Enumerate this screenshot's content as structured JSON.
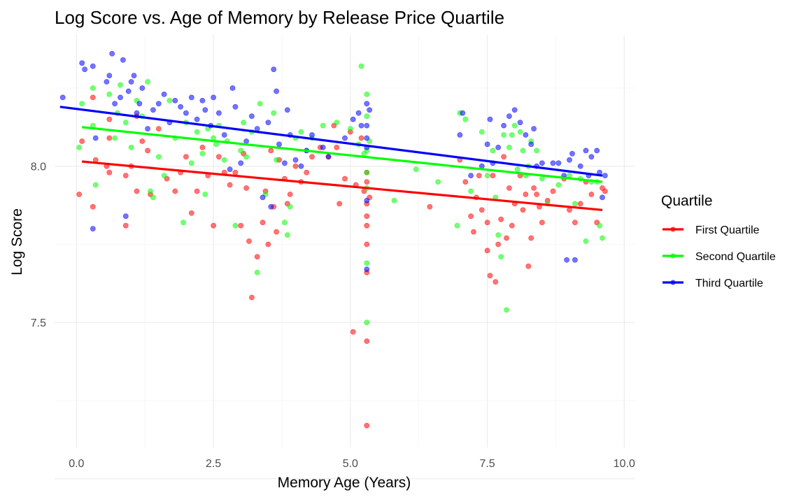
{
  "chart_data": {
    "type": "scatter",
    "title": "Log Score vs. Age of Memory by Release Price Quartile",
    "xlabel": "Memory Age (Years)",
    "ylabel": "Log Score",
    "xlim": [
      -0.4,
      10.2
    ],
    "ylim": [
      7.1,
      8.42
    ],
    "x_ticks": [
      0,
      2.5,
      5,
      7.5,
      10
    ],
    "x_tick_labels": [
      "0.0",
      "2.5",
      "5.0",
      "7.5",
      "10.0"
    ],
    "y_ticks": [
      7.5,
      8.0
    ],
    "y_tick_labels": [
      "7.5",
      "8.0"
    ],
    "grid": true,
    "legend_title": "Quartile",
    "legend_position": "right",
    "series": [
      {
        "name": "First Quartile",
        "color": "#ff0000",
        "trend": [
          [
            0.1,
            8.015
          ],
          [
            9.6,
            7.86
          ]
        ],
        "points": [
          [
            0.05,
            7.91
          ],
          [
            0.1,
            8.08
          ],
          [
            0.3,
            7.87
          ],
          [
            0.3,
            8.22
          ],
          [
            0.35,
            8.02
          ],
          [
            0.55,
            8.0
          ],
          [
            0.6,
            7.98
          ],
          [
            0.6,
            8.09
          ],
          [
            0.6,
            8.15
          ],
          [
            0.9,
            7.81
          ],
          [
            0.9,
            7.97
          ],
          [
            1.0,
            8.0
          ],
          [
            1.1,
            7.92
          ],
          [
            1.1,
            8.16
          ],
          [
            1.2,
            8.08
          ],
          [
            1.3,
            8.05
          ],
          [
            1.35,
            7.91
          ],
          [
            1.5,
            8.12
          ],
          [
            1.65,
            7.96
          ],
          [
            1.8,
            7.92
          ],
          [
            1.9,
            7.98
          ],
          [
            2.0,
            8.03
          ],
          [
            2.1,
            7.85
          ],
          [
            2.2,
            7.92
          ],
          [
            2.3,
            8.06
          ],
          [
            2.4,
            7.97
          ],
          [
            2.5,
            7.81
          ],
          [
            2.6,
            8.03
          ],
          [
            2.7,
            7.98
          ],
          [
            2.8,
            7.94
          ],
          [
            2.9,
            7.98
          ],
          [
            3.0,
            7.81
          ],
          [
            3.05,
            8.04
          ],
          [
            3.1,
            7.93
          ],
          [
            3.15,
            7.76
          ],
          [
            3.2,
            7.58
          ],
          [
            3.3,
            7.71
          ],
          [
            3.4,
            7.82
          ],
          [
            3.45,
            7.92
          ],
          [
            3.5,
            7.75
          ],
          [
            3.55,
            8.05
          ],
          [
            3.6,
            7.87
          ],
          [
            3.65,
            7.79
          ],
          [
            3.7,
            8.02
          ],
          [
            3.8,
            7.96
          ],
          [
            3.85,
            7.88
          ],
          [
            3.9,
            7.91
          ],
          [
            4.0,
            8.0
          ],
          [
            4.1,
            7.95
          ],
          [
            4.2,
            7.98
          ],
          [
            4.3,
            8.03
          ],
          [
            4.45,
            8.06
          ],
          [
            4.6,
            8.03
          ],
          [
            4.7,
            8.13
          ],
          [
            4.75,
            8.06
          ],
          [
            4.8,
            7.88
          ],
          [
            4.9,
            7.96
          ],
          [
            5.0,
            8.11
          ],
          [
            5.05,
            7.47
          ],
          [
            5.1,
            7.94
          ],
          [
            5.2,
            8.09
          ],
          [
            5.25,
            7.92
          ],
          [
            5.3,
            7.98
          ],
          [
            5.3,
            7.88
          ],
          [
            5.3,
            7.81
          ],
          [
            5.3,
            7.75
          ],
          [
            5.3,
            7.66
          ],
          [
            5.3,
            7.44
          ],
          [
            5.3,
            7.17
          ],
          [
            5.3,
            7.95
          ],
          [
            5.3,
            7.84
          ],
          [
            5.35,
            7.9
          ],
          [
            6.45,
            7.87
          ],
          [
            7.0,
            8.02
          ],
          [
            7.1,
            7.95
          ],
          [
            7.2,
            7.84
          ],
          [
            7.25,
            7.79
          ],
          [
            7.3,
            7.9
          ],
          [
            7.35,
            7.97
          ],
          [
            7.4,
            7.86
          ],
          [
            7.5,
            7.82
          ],
          [
            7.5,
            7.73
          ],
          [
            7.55,
            7.65
          ],
          [
            7.6,
            7.97
          ],
          [
            7.65,
            7.63
          ],
          [
            7.7,
            7.75
          ],
          [
            7.75,
            7.83
          ],
          [
            7.8,
            8.03
          ],
          [
            7.85,
            7.77
          ],
          [
            7.9,
            7.93
          ],
          [
            7.95,
            7.81
          ],
          [
            8.0,
            7.88
          ],
          [
            8.1,
            7.97
          ],
          [
            8.15,
            7.86
          ],
          [
            8.2,
            7.91
          ],
          [
            8.25,
            7.68
          ],
          [
            8.3,
            7.77
          ],
          [
            8.35,
            7.93
          ],
          [
            8.4,
            7.91
          ],
          [
            8.45,
            7.87
          ],
          [
            8.5,
            7.82
          ],
          [
            8.6,
            7.89
          ],
          [
            8.7,
            7.92
          ],
          [
            8.9,
            7.96
          ],
          [
            9.0,
            7.86
          ],
          [
            9.1,
            7.82
          ],
          [
            9.2,
            7.88
          ],
          [
            9.3,
            7.95
          ],
          [
            9.4,
            7.91
          ],
          [
            9.5,
            7.82
          ],
          [
            9.6,
            7.93
          ],
          [
            9.65,
            7.92
          ]
        ]
      },
      {
        "name": "Second Quartile",
        "color": "#00ff00",
        "trend": [
          [
            0.1,
            8.125
          ],
          [
            9.6,
            7.95
          ]
        ],
        "points": [
          [
            0.05,
            8.06
          ],
          [
            0.1,
            8.2
          ],
          [
            0.3,
            8.13
          ],
          [
            0.3,
            8.25
          ],
          [
            0.35,
            7.94
          ],
          [
            0.6,
            8.23
          ],
          [
            0.7,
            8.09
          ],
          [
            0.75,
            8.17
          ],
          [
            0.8,
            8.26
          ],
          [
            0.9,
            8.14
          ],
          [
            1.0,
            8.06
          ],
          [
            1.1,
            8.21
          ],
          [
            1.2,
            8.16
          ],
          [
            1.3,
            8.27
          ],
          [
            1.35,
            7.92
          ],
          [
            1.4,
            7.9
          ],
          [
            1.5,
            8.03
          ],
          [
            1.6,
            7.97
          ],
          [
            1.7,
            8.21
          ],
          [
            1.8,
            8.09
          ],
          [
            1.95,
            7.82
          ],
          [
            2.0,
            8.14
          ],
          [
            2.1,
            8.01
          ],
          [
            2.2,
            8.11
          ],
          [
            2.3,
            8.04
          ],
          [
            2.35,
            7.91
          ],
          [
            2.4,
            8.12
          ],
          [
            2.5,
            8.09
          ],
          [
            2.55,
            8.07
          ],
          [
            2.6,
            8.13
          ],
          [
            2.7,
            8.02
          ],
          [
            2.75,
            8.08
          ],
          [
            2.9,
            7.81
          ],
          [
            3.0,
            8.05
          ],
          [
            3.05,
            8.14
          ],
          [
            3.1,
            8.03
          ],
          [
            3.2,
            8.11
          ],
          [
            3.3,
            7.66
          ],
          [
            3.35,
            8.2
          ],
          [
            3.45,
            7.91
          ],
          [
            3.6,
            8.17
          ],
          [
            3.65,
            8.02
          ],
          [
            3.8,
            7.82
          ],
          [
            3.85,
            7.78
          ],
          [
            3.9,
            7.87
          ],
          [
            4.0,
            8.09
          ],
          [
            4.1,
            8.11
          ],
          [
            4.2,
            8.05
          ],
          [
            4.3,
            8.09
          ],
          [
            4.5,
            8.13
          ],
          [
            4.75,
            8.14
          ],
          [
            5.0,
            8.12
          ],
          [
            5.15,
            8.07
          ],
          [
            5.2,
            8.32
          ],
          [
            5.25,
            8.04
          ],
          [
            5.3,
            8.05
          ],
          [
            5.3,
            7.93
          ],
          [
            5.3,
            7.69
          ],
          [
            5.3,
            7.5
          ],
          [
            5.3,
            8.23
          ],
          [
            5.3,
            8.16
          ],
          [
            5.3,
            7.98
          ],
          [
            5.35,
            8.08
          ],
          [
            5.8,
            7.89
          ],
          [
            6.2,
            7.99
          ],
          [
            6.6,
            7.95
          ],
          [
            6.95,
            7.81
          ],
          [
            7.0,
            8.17
          ],
          [
            7.1,
            8.15
          ],
          [
            7.2,
            7.92
          ],
          [
            7.4,
            8.11
          ],
          [
            7.5,
            7.97
          ],
          [
            7.6,
            8.05
          ],
          [
            7.65,
            7.9
          ],
          [
            7.7,
            7.78
          ],
          [
            7.75,
            7.71
          ],
          [
            7.8,
            8.1
          ],
          [
            7.85,
            7.54
          ],
          [
            7.9,
            8.06
          ],
          [
            7.95,
            8.1
          ],
          [
            8.0,
            8.13
          ],
          [
            8.05,
            7.99
          ],
          [
            8.1,
            8.11
          ],
          [
            8.15,
            8.05
          ],
          [
            8.2,
            7.97
          ],
          [
            8.25,
            8.0
          ],
          [
            8.3,
            8.08
          ],
          [
            8.4,
            8.05
          ],
          [
            8.5,
            7.96
          ],
          [
            8.6,
            7.88
          ],
          [
            8.8,
            7.94
          ],
          [
            9.0,
            7.97
          ],
          [
            9.1,
            7.88
          ],
          [
            9.2,
            7.96
          ],
          [
            9.3,
            7.76
          ],
          [
            9.4,
            7.95
          ],
          [
            9.5,
            7.95
          ],
          [
            9.55,
            7.81
          ],
          [
            9.6,
            7.77
          ]
        ]
      },
      {
        "name": "Third Quartile",
        "color": "#0000ff",
        "trend": [
          [
            -0.3,
            8.19
          ],
          [
            9.6,
            7.97
          ]
        ],
        "points": [
          [
            -0.25,
            8.22
          ],
          [
            0.1,
            8.33
          ],
          [
            0.15,
            8.31
          ],
          [
            0.3,
            8.32
          ],
          [
            0.3,
            7.8
          ],
          [
            0.35,
            8.09
          ],
          [
            0.55,
            8.27
          ],
          [
            0.6,
            8.29
          ],
          [
            0.65,
            8.36
          ],
          [
            0.7,
            8.2
          ],
          [
            0.8,
            8.22
          ],
          [
            0.85,
            8.34
          ],
          [
            0.9,
            7.84
          ],
          [
            0.95,
            8.24
          ],
          [
            1.0,
            8.27
          ],
          [
            1.05,
            8.29
          ],
          [
            1.1,
            8.17
          ],
          [
            1.15,
            8.2
          ],
          [
            1.2,
            8.25
          ],
          [
            1.3,
            8.12
          ],
          [
            1.4,
            8.18
          ],
          [
            1.5,
            8.2
          ],
          [
            1.6,
            8.23
          ],
          [
            1.7,
            8.14
          ],
          [
            1.8,
            8.21
          ],
          [
            1.9,
            8.19
          ],
          [
            2.0,
            8.17
          ],
          [
            2.1,
            8.22
          ],
          [
            2.2,
            8.15
          ],
          [
            2.3,
            8.21
          ],
          [
            2.35,
            8.18
          ],
          [
            2.45,
            8.13
          ],
          [
            2.5,
            8.22
          ],
          [
            2.6,
            8.17
          ],
          [
            2.7,
            8.1
          ],
          [
            2.8,
            7.99
          ],
          [
            2.85,
            8.25
          ],
          [
            2.9,
            8.19
          ],
          [
            3.0,
            8.01
          ],
          [
            3.1,
            8.08
          ],
          [
            3.2,
            8.16
          ],
          [
            3.3,
            8.12
          ],
          [
            3.4,
            7.9
          ],
          [
            3.5,
            8.14
          ],
          [
            3.55,
            7.87
          ],
          [
            3.6,
            8.31
          ],
          [
            3.65,
            8.24
          ],
          [
            3.7,
            8.07
          ],
          [
            3.8,
            8.01
          ],
          [
            3.85,
            8.18
          ],
          [
            3.9,
            8.1
          ],
          [
            4.0,
            8.02
          ],
          [
            4.1,
            8.0
          ],
          [
            4.2,
            8.05
          ],
          [
            4.3,
            8.1
          ],
          [
            4.5,
            8.06
          ],
          [
            4.6,
            8.03
          ],
          [
            4.9,
            8.09
          ],
          [
            5.05,
            8.15
          ],
          [
            5.15,
            8.17
          ],
          [
            5.2,
            8.13
          ],
          [
            5.3,
            8.2
          ],
          [
            5.3,
            8.09
          ],
          [
            5.3,
            7.89
          ],
          [
            5.3,
            7.67
          ],
          [
            5.3,
            8.13
          ],
          [
            5.3,
            8.06
          ],
          [
            5.35,
            8.18
          ],
          [
            7.0,
            8.1
          ],
          [
            7.05,
            8.17
          ],
          [
            7.2,
            7.97
          ],
          [
            7.4,
            8.0
          ],
          [
            7.5,
            8.07
          ],
          [
            7.55,
            8.15
          ],
          [
            7.6,
            8.01
          ],
          [
            7.7,
            8.06
          ],
          [
            7.8,
            8.13
          ],
          [
            7.9,
            8.16
          ],
          [
            8.0,
            8.18
          ],
          [
            8.1,
            8.14
          ],
          [
            8.2,
            8.1
          ],
          [
            8.3,
            8.07
          ],
          [
            8.35,
            8.12
          ],
          [
            8.4,
            8.0
          ],
          [
            8.5,
            8.01
          ],
          [
            8.7,
            8.01
          ],
          [
            8.8,
            8.01
          ],
          [
            8.9,
            7.97
          ],
          [
            8.95,
            7.7
          ],
          [
            9.0,
            8.02
          ],
          [
            9.05,
            8.04
          ],
          [
            9.1,
            7.7
          ],
          [
            9.2,
            8.0
          ],
          [
            9.3,
            8.05
          ],
          [
            9.35,
            7.97
          ],
          [
            9.4,
            8.03
          ],
          [
            9.5,
            8.05
          ],
          [
            9.55,
            7.98
          ],
          [
            9.6,
            7.9
          ],
          [
            9.65,
            7.97
          ]
        ]
      }
    ]
  }
}
